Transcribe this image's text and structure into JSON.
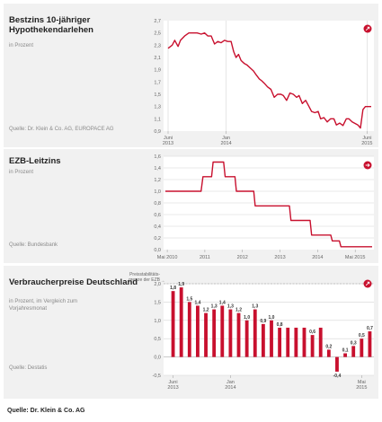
{
  "panels": [
    {
      "title": "Bestzins 10-jähriger Hypothekendarlehen",
      "subtitle": "in Prozent",
      "source": "Quelle: Dr. Klein & Co. AG, EUROPACE AG",
      "nav_icon": "arrow-diagonal-icon"
    },
    {
      "title": "EZB-Leitzins",
      "subtitle": "in Prozent",
      "source": "Quelle: Bundesbank",
      "nav_icon": "arrow-right-icon"
    },
    {
      "title": "Verbraucherpreise Deutschland",
      "subtitle": "in Prozent, im Vergleich zum Vorjahresmonat",
      "source": "Quelle: Destatis",
      "nav_icon": "arrow-diagonal-icon"
    }
  ],
  "footer": {
    "source": "Quelle: Dr. Klein & Co. AG"
  },
  "colors": {
    "line": "#c8102e",
    "panel_bg": "#f1f1f1",
    "plot_bg": "#ffffff",
    "grid": "#d5d5d5"
  },
  "chart_data": [
    {
      "type": "line",
      "ylim": [
        0.9,
        2.7
      ],
      "yticks": [
        "0,9",
        "1,1",
        "1,3",
        "1,5",
        "1,7",
        "1,9",
        "2,1",
        "2,3",
        "2,5",
        "2,7"
      ],
      "xticks": [
        {
          "t": 0,
          "l1": "Juni",
          "l2": "2013"
        },
        {
          "t": 7,
          "l1": "Jan",
          "l2": "2014"
        },
        {
          "t": 24,
          "l1": "Juni",
          "l2": "2015"
        }
      ],
      "grid": "vertical",
      "values": [
        [
          0,
          2.25
        ],
        [
          0.5,
          2.3
        ],
        [
          0.8,
          2.38
        ],
        [
          1.2,
          2.28
        ],
        [
          1.5,
          2.38
        ],
        [
          2,
          2.45
        ],
        [
          2.5,
          2.5
        ],
        [
          3,
          2.5
        ],
        [
          3.5,
          2.5
        ],
        [
          4,
          2.48
        ],
        [
          4.4,
          2.5
        ],
        [
          4.8,
          2.45
        ],
        [
          5.2,
          2.45
        ],
        [
          5.6,
          2.32
        ],
        [
          6,
          2.36
        ],
        [
          6.4,
          2.34
        ],
        [
          6.8,
          2.38
        ],
        [
          7.2,
          2.36
        ],
        [
          7.6,
          2.36
        ],
        [
          7.9,
          2.2
        ],
        [
          8.2,
          2.1
        ],
        [
          8.5,
          2.15
        ],
        [
          8.8,
          2.05
        ],
        [
          9.2,
          2.0
        ],
        [
          9.5,
          1.98
        ],
        [
          9.9,
          1.93
        ],
        [
          10.3,
          1.88
        ],
        [
          10.6,
          1.82
        ],
        [
          11,
          1.75
        ],
        [
          11.3,
          1.72
        ],
        [
          11.6,
          1.68
        ],
        [
          12,
          1.62
        ],
        [
          12.4,
          1.58
        ],
        [
          12.8,
          1.45
        ],
        [
          13.2,
          1.5
        ],
        [
          13.6,
          1.5
        ],
        [
          13.9,
          1.48
        ],
        [
          14.3,
          1.4
        ],
        [
          14.7,
          1.52
        ],
        [
          15.1,
          1.5
        ],
        [
          15.5,
          1.45
        ],
        [
          15.8,
          1.48
        ],
        [
          16.2,
          1.35
        ],
        [
          16.6,
          1.4
        ],
        [
          17,
          1.3
        ],
        [
          17.3,
          1.22
        ],
        [
          17.7,
          1.2
        ],
        [
          18.1,
          1.22
        ],
        [
          18.4,
          1.1
        ],
        [
          18.8,
          1.12
        ],
        [
          19.2,
          1.05
        ],
        [
          19.6,
          1.1
        ],
        [
          20,
          1.1
        ],
        [
          20.3,
          1.0
        ],
        [
          20.7,
          1.03
        ],
        [
          21.1,
          0.99
        ],
        [
          21.5,
          1.1
        ],
        [
          21.8,
          1.1
        ],
        [
          22.2,
          1.05
        ],
        [
          22.6,
          1.02
        ],
        [
          22.9,
          1.0
        ],
        [
          23.2,
          0.95
        ],
        [
          23.5,
          1.25
        ],
        [
          23.8,
          1.3
        ],
        [
          24,
          1.3
        ],
        [
          24.5,
          1.3
        ]
      ],
      "tmax": 24.5
    },
    {
      "type": "line",
      "ylim": [
        0,
        1.6
      ],
      "yticks": [
        "0,0",
        "0,2",
        "0,4",
        "0,6",
        "0,8",
        "1,0",
        "1,2",
        "1,4",
        "1,6"
      ],
      "xticks": [
        {
          "t": 2010,
          "l1": "Mai 2010",
          "l2": ""
        },
        {
          "t": 2011,
          "l1": "2011",
          "l2": ""
        },
        {
          "t": 2012,
          "l1": "2012",
          "l2": ""
        },
        {
          "t": 2013,
          "l1": "2013",
          "l2": ""
        },
        {
          "t": 2014,
          "l1": "2014",
          "l2": ""
        },
        {
          "t": 2015,
          "l1": "Mai 2015",
          "l2": ""
        }
      ],
      "grid": "horizontal",
      "values": [
        [
          2009.95,
          1.0
        ],
        [
          2010.9,
          1.0
        ],
        [
          2010.95,
          1.25
        ],
        [
          2011.18,
          1.25
        ],
        [
          2011.22,
          1.5
        ],
        [
          2011.5,
          1.5
        ],
        [
          2011.54,
          1.25
        ],
        [
          2011.8,
          1.25
        ],
        [
          2011.84,
          1.0
        ],
        [
          2012.3,
          1.0
        ],
        [
          2012.34,
          0.75
        ],
        [
          2013.25,
          0.75
        ],
        [
          2013.29,
          0.5
        ],
        [
          2013.8,
          0.5
        ],
        [
          2013.84,
          0.25
        ],
        [
          2014.35,
          0.25
        ],
        [
          2014.39,
          0.15
        ],
        [
          2014.58,
          0.15
        ],
        [
          2014.62,
          0.05
        ],
        [
          2015.45,
          0.05
        ]
      ],
      "tmin": 2009.95,
      "tmax": 2015.45
    },
    {
      "type": "bar",
      "ylim": [
        -0.5,
        2.0
      ],
      "yticks": [
        "-0,5",
        "0,0",
        "0,5",
        "1,0",
        "1,5",
        "2,0"
      ],
      "xticks": [
        {
          "i": 0,
          "l1": "Juni",
          "l2": "2013"
        },
        {
          "i": 7,
          "l1": "Jan",
          "l2": "2014"
        },
        {
          "i": 23,
          "l1": "Mai",
          "l2": "2015"
        }
      ],
      "reference_line": {
        "value": 2.0,
        "label1": "Preisstabilitäts-",
        "label2": "grenze der EZB"
      },
      "values": [
        1.8,
        1.9,
        1.5,
        1.4,
        1.2,
        1.3,
        1.4,
        1.3,
        1.2,
        1.0,
        1.3,
        0.9,
        1.0,
        0.8,
        0.8,
        0.8,
        0.8,
        0.6,
        0.8,
        0.2,
        -0.4,
        0.1,
        0.3,
        0.5,
        0.7
      ],
      "labels": [
        "1,8",
        "1,9",
        "1,5",
        "1,4",
        "1,2",
        "1,3",
        "1,4",
        "1,3",
        "1,2",
        "1,0",
        "1,3",
        "0,9",
        "1,0",
        "0,8",
        "",
        "",
        "",
        "0,6",
        "",
        "0,2",
        "-0,4",
        "0,1",
        "0,3",
        "0,5",
        "0,7"
      ]
    }
  ]
}
